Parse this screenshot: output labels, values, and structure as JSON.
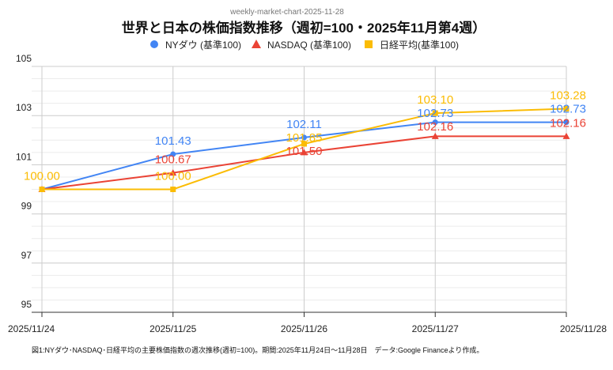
{
  "chart_data": {
    "type": "line",
    "subtitle": "weekly-market-chart-2025-11-28",
    "title": "世界と日本の株価指数推移（週初=100・2025年11月第4週）",
    "categories": [
      "2025/11/24",
      "2025/11/25",
      "2025/11/26",
      "2025/11/27",
      "2025/11/28"
    ],
    "ylim": [
      95,
      105
    ],
    "yticks": [
      "95",
      "97",
      "99",
      "101",
      "103",
      "105"
    ],
    "grid": true,
    "legend_position": "top",
    "series": [
      {
        "name": "NYダウ (基準100)",
        "marker": "circle",
        "color": "#4285f4",
        "values": [
          100,
          101.43,
          102.11,
          102.73,
          102.73
        ],
        "labels": [
          "",
          "101.43",
          "102.11",
          "102.73",
          "102.73"
        ]
      },
      {
        "name": "NASDAQ (基準100)",
        "marker": "triangle",
        "color": "#ea4335",
        "values": [
          100,
          100.67,
          101.5,
          102.16,
          102.16
        ],
        "labels": [
          "",
          "100.67",
          "101.50",
          "102.16",
          "102.16"
        ]
      },
      {
        "name": "日経平均(基準100)",
        "marker": "square",
        "color": "#fbbc04",
        "values": [
          100,
          100.0,
          101.85,
          103.1,
          103.28
        ],
        "labels": [
          "100.00",
          "100.00",
          "101.85",
          "103.10",
          "103.28"
        ]
      }
    ],
    "caption": "図1:NYダウ･NASDAQ･日経平均の主要株価指数の週次推移(週初=100)。期間:2025年11月24日～11月28日　データ:Google Financeより作成。"
  }
}
